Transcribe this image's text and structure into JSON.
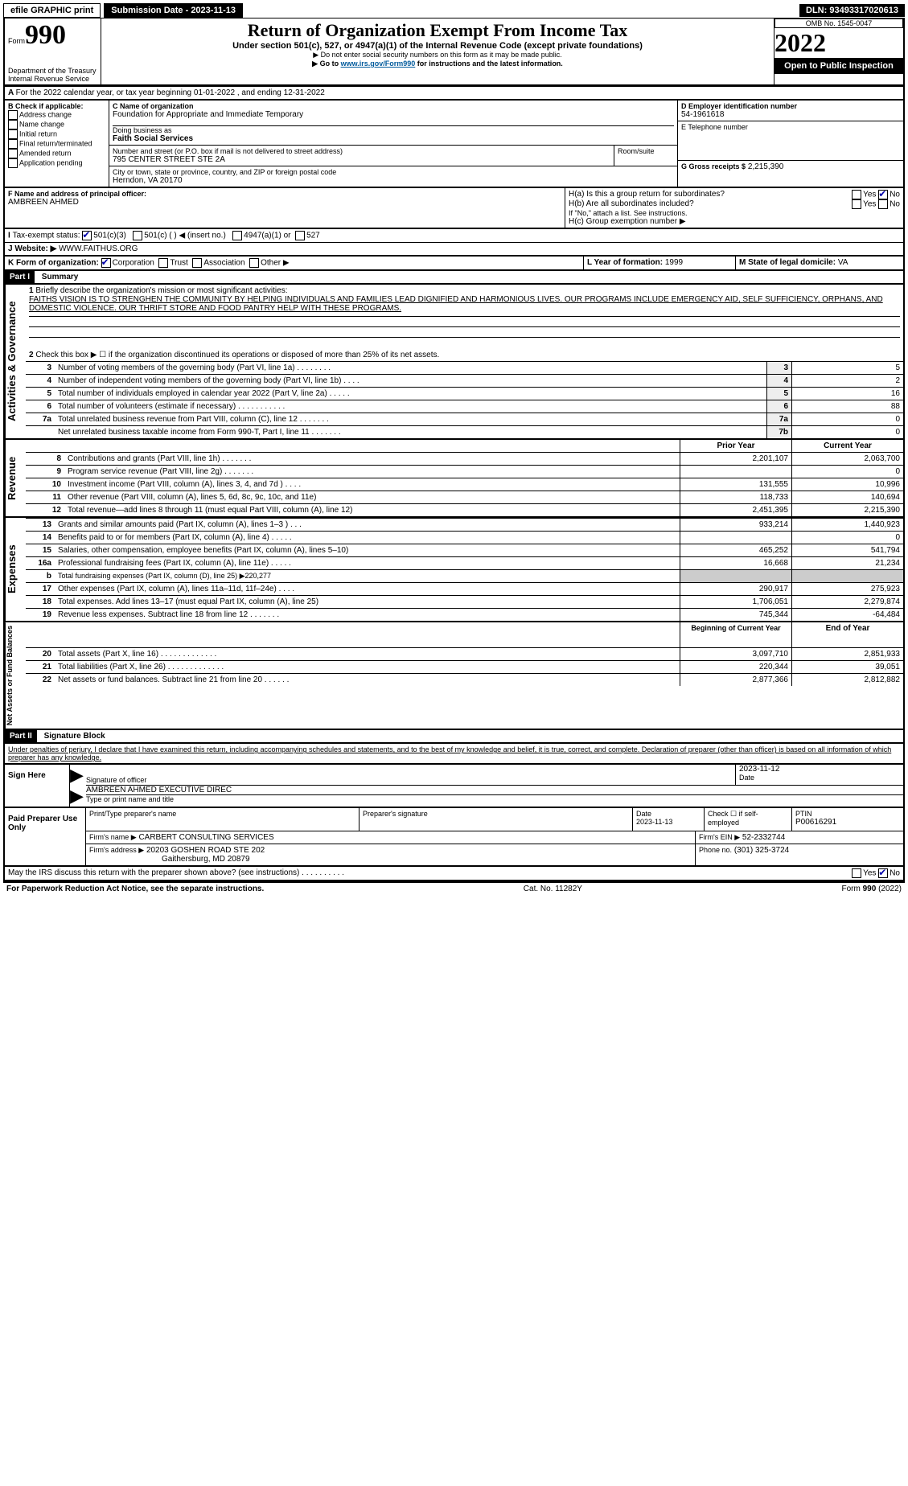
{
  "topbar": {
    "efile": "efile GRAPHIC print",
    "submission_label": "Submission Date - 2023-11-13",
    "dln": "DLN: 93493317020613"
  },
  "header": {
    "form_word": "Form",
    "form_num": "990",
    "title": "Return of Organization Exempt From Income Tax",
    "subtitle": "Under section 501(c), 527, or 4947(a)(1) of the Internal Revenue Code (except private foundations)",
    "note1": "▶ Do not enter social security numbers on this form as it may be made public.",
    "note2_pre": "▶ Go to ",
    "note2_link": "www.irs.gov/Form990",
    "note2_post": " for instructions and the latest information.",
    "dept": "Department of the Treasury",
    "irs": "Internal Revenue Service",
    "omb": "OMB No. 1545-0047",
    "year": "2022",
    "open": "Open to Public Inspection"
  },
  "periodA": "For the 2022 calendar year, or tax year beginning 01-01-2022    , and ending 12-31-2022",
  "boxB": {
    "label": "B Check if applicable:",
    "items": [
      "Address change",
      "Name change",
      "Initial return",
      "Final return/terminated",
      "Amended return",
      "Application pending"
    ]
  },
  "boxC": {
    "label": "C Name of organization",
    "name": "Foundation for Appropriate and Immediate Temporary",
    "dba_label": "Doing business as",
    "dba": "Faith Social Services",
    "street_label": "Number and street (or P.O. box if mail is not delivered to street address)",
    "room_label": "Room/suite",
    "street": "795 CENTER STREET STE 2A",
    "city_label": "City or town, state or province, country, and ZIP or foreign postal code",
    "city": "Herndon, VA  20170"
  },
  "boxD": {
    "label": "D Employer identification number",
    "value": "54-1961618"
  },
  "boxE": {
    "label": "E Telephone number",
    "value": ""
  },
  "boxG": {
    "label": "G Gross receipts $",
    "value": "2,215,390"
  },
  "boxF": {
    "label": "F  Name and address of principal officer:",
    "value": "AMBREEN AHMED"
  },
  "boxH": {
    "a": "H(a)  Is this a group return for subordinates?",
    "b": "H(b)  Are all subordinates included?",
    "b_note": "If \"No,\" attach a list. See instructions.",
    "c": "H(c)  Group exemption number ▶",
    "yes": "Yes",
    "no": "No"
  },
  "taxExempt": {
    "label": "Tax-exempt status:",
    "o1": "501(c)(3)",
    "o2": "501(c) (  ) ◀ (insert no.)",
    "o3": "4947(a)(1) or",
    "o4": "527"
  },
  "website": {
    "label": "Website: ▶",
    "value": "WWW.FAITHUS.ORG"
  },
  "boxK": {
    "label": "K Form of organization:",
    "o1": "Corporation",
    "o2": "Trust",
    "o3": "Association",
    "o4": "Other ▶"
  },
  "boxL": {
    "label": "L Year of formation:",
    "value": "1999"
  },
  "boxM": {
    "label": "M State of legal domicile:",
    "value": "VA"
  },
  "part1": {
    "header": "Part I",
    "title": "Summary"
  },
  "summary": {
    "l1_label": "Briefly describe the organization's mission or most significant activities:",
    "l1_text": "FAITHS VISION IS TO STRENGHEN THE COMMUNITY BY HELPING INDIVIDUALS AND FAMILIES LEAD DIGNIFIED AND HARMONIOUS LIVES. OUR PROGRAMS INCLUDE EMERGENCY AID, SELF SUFFICIENCY, ORPHANS, AND DOMESTIC VIOLENCE. OUR THRIFT STORE AND FOOD PANTRY HELP WITH THESE PROGRAMS.",
    "l2": "Check this box ▶ ☐  if the organization discontinued its operations or disposed of more than 25% of its net assets.",
    "rows_gov": [
      {
        "n": "3",
        "t": "Number of voting members of the governing body (Part VI, line 1a)   .    .    .    .    .    .    .    .",
        "i": "3",
        "v": "5"
      },
      {
        "n": "4",
        "t": "Number of independent voting members of the governing body (Part VI, line 1b)    .    .    .    .",
        "i": "4",
        "v": "2"
      },
      {
        "n": "5",
        "t": "Total number of individuals employed in calendar year 2022 (Part V, line 2a)   .    .    .    .    .",
        "i": "5",
        "v": "16"
      },
      {
        "n": "6",
        "t": "Total number of volunteers (estimate if necessary)    .    .    .    .    .    .    .    .    .    .    .",
        "i": "6",
        "v": "88"
      },
      {
        "n": "7a",
        "t": "Total unrelated business revenue from Part VIII, column (C), line 12   .    .    .    .    .    .    .",
        "i": "7a",
        "v": "0"
      },
      {
        "n": "",
        "t": "Net unrelated business taxable income from Form 990-T, Part I, line 11   .    .    .    .    .    .    .",
        "i": "7b",
        "v": "0"
      }
    ],
    "col_prior": "Prior Year",
    "col_current": "Current Year",
    "rows_rev": [
      {
        "n": "8",
        "t": "Contributions and grants (Part VIII, line 1h)   .    .    .    .    .    .    .",
        "p": "2,201,107",
        "c": "2,063,700"
      },
      {
        "n": "9",
        "t": "Program service revenue (Part VIII, line 2g)   .    .    .    .    .    .    .",
        "p": "",
        "c": "0"
      },
      {
        "n": "10",
        "t": "Investment income (Part VIII, column (A), lines 3, 4, and 7d )   .    .    .    .",
        "p": "131,555",
        "c": "10,996"
      },
      {
        "n": "11",
        "t": "Other revenue (Part VIII, column (A), lines 5, 6d, 8c, 9c, 10c, and 11e)",
        "p": "118,733",
        "c": "140,694"
      },
      {
        "n": "12",
        "t": "Total revenue—add lines 8 through 11 (must equal Part VIII, column (A), line 12)",
        "p": "2,451,395",
        "c": "2,215,390"
      }
    ],
    "rows_exp": [
      {
        "n": "13",
        "t": "Grants and similar amounts paid (Part IX, column (A), lines 1–3 )   .    .    .",
        "p": "933,214",
        "c": "1,440,923"
      },
      {
        "n": "14",
        "t": "Benefits paid to or for members (Part IX, column (A), line 4)   .    .    .    .    .",
        "p": "",
        "c": "0"
      },
      {
        "n": "15",
        "t": "Salaries, other compensation, employee benefits (Part IX, column (A), lines 5–10)",
        "p": "465,252",
        "c": "541,794"
      },
      {
        "n": "16a",
        "t": "Professional fundraising fees (Part IX, column (A), line 11e)   .    .    .    .    .",
        "p": "16,668",
        "c": "21,234"
      },
      {
        "n": "b",
        "t": "Total fundraising expenses (Part IX, column (D), line 25) ▶220,277",
        "p": "grey",
        "c": "grey"
      },
      {
        "n": "17",
        "t": "Other expenses (Part IX, column (A), lines 11a–11d, 11f–24e)   .    .    .    .",
        "p": "290,917",
        "c": "275,923"
      },
      {
        "n": "18",
        "t": "Total expenses. Add lines 13–17 (must equal Part IX, column (A), line 25)",
        "p": "1,706,051",
        "c": "2,279,874"
      },
      {
        "n": "19",
        "t": "Revenue less expenses. Subtract line 18 from line 12   .    .    .    .    .    .    .",
        "p": "745,344",
        "c": "-64,484"
      }
    ],
    "col_begin": "Beginning of Current Year",
    "col_end": "End of Year",
    "rows_net": [
      {
        "n": "20",
        "t": "Total assets (Part X, line 16)   .    .    .    .    .    .    .    .    .    .    .    .    .",
        "p": "3,097,710",
        "c": "2,851,933"
      },
      {
        "n": "21",
        "t": "Total liabilities (Part X, line 26)   .    .    .    .    .    .    .    .    .    .    .    .    .",
        "p": "220,344",
        "c": "39,051"
      },
      {
        "n": "22",
        "t": "Net assets or fund balances. Subtract line 21 from line 20   .    .    .    .    .    .",
        "p": "2,877,366",
        "c": "2,812,882"
      }
    ],
    "side_gov": "Activities & Governance",
    "side_rev": "Revenue",
    "side_exp": "Expenses",
    "side_net": "Net Assets or Fund Balances"
  },
  "part2": {
    "header": "Part II",
    "title": "Signature Block"
  },
  "sig": {
    "penalty": "Under penalties of perjury, I declare that I have examined this return, including accompanying schedules and statements, and to the best of my knowledge and belief, it is true, correct, and complete. Declaration of preparer (other than officer) is based on all information of which preparer has any knowledge.",
    "sign_here": "Sign Here",
    "sig_officer": "Signature of officer",
    "date": "Date",
    "date_val": "2023-11-12",
    "name_title": "AMBREEN AHMED  EXECUTIVE DIREC",
    "name_label": "Type or print name and title",
    "paid": "Paid Preparer Use Only",
    "pp_name_label": "Print/Type preparer's name",
    "pp_sig_label": "Preparer's signature",
    "pp_date_label": "Date",
    "pp_date": "2023-11-13",
    "pp_check": "Check ☐ if self-employed",
    "ptin_label": "PTIN",
    "ptin": "P00616291",
    "firm_name_label": "Firm's name    ▶",
    "firm_name": "CARBERT CONSULTING SERVICES",
    "firm_ein_label": "Firm's EIN ▶",
    "firm_ein": "52-2332744",
    "firm_addr_label": "Firm's address ▶",
    "firm_addr1": "20203 GOSHEN ROAD STE 202",
    "firm_addr2": "Gaithersburg, MD  20879",
    "phone_label": "Phone no.",
    "phone": "(301) 325-3724",
    "may_irs": "May the IRS discuss this return with the preparer shown above? (see instructions)   .    .    .    .    .    .    .    .    .    .",
    "yes": "Yes",
    "no": "No"
  },
  "footer": {
    "left": "For Paperwork Reduction Act Notice, see the separate instructions.",
    "mid": "Cat. No. 11282Y",
    "right": "Form 990 (2022)"
  }
}
